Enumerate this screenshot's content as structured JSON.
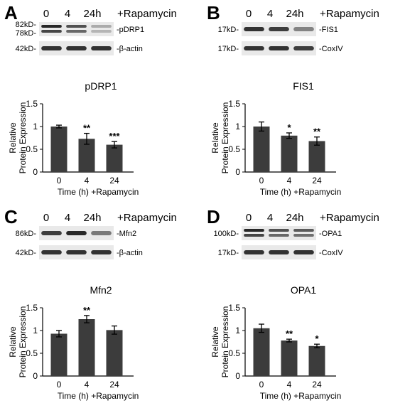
{
  "figure": {
    "lane_headers": [
      "0",
      "4",
      "24h"
    ],
    "treatment": "+Rapamycin",
    "blot_colors": {
      "background": "#e9e9e9",
      "band": "#1e1e1e"
    },
    "bar_color": "#3c3c3c"
  },
  "panels": [
    {
      "letter": "A",
      "blots": [
        {
          "protein": "pDRP1",
          "markers": [
            "82kD-",
            "78kD-"
          ],
          "intensity": [
            0.95,
            0.75,
            0.3
          ],
          "double_band": true
        },
        {
          "protein": "β-actin",
          "markers": [
            "42kD-"
          ],
          "intensity": [
            0.9,
            0.9,
            0.9
          ],
          "double_band": false
        }
      ]
    },
    {
      "letter": "B",
      "blots": [
        {
          "protein": "FIS1",
          "markers": [
            "17kD-"
          ],
          "intensity": [
            0.9,
            0.85,
            0.5
          ],
          "double_band": false
        },
        {
          "protein": "CoxIV",
          "markers": [
            "17kD-"
          ],
          "intensity": [
            0.9,
            0.9,
            0.85
          ],
          "double_band": false
        }
      ]
    },
    {
      "letter": "C",
      "blots": [
        {
          "protein": "Mfn2",
          "markers": [
            "86kD-"
          ],
          "intensity": [
            0.85,
            0.95,
            0.55
          ],
          "double_band": false
        },
        {
          "protein": "β-actin",
          "markers": [
            "42kD-"
          ],
          "intensity": [
            0.9,
            0.9,
            0.9
          ],
          "double_band": false
        }
      ]
    },
    {
      "letter": "D",
      "blots": [
        {
          "protein": "OPA1",
          "markers": [
            "100kD-"
          ],
          "intensity": [
            0.95,
            0.75,
            0.7
          ],
          "double_band": true
        },
        {
          "protein": "CoxIV",
          "markers": [
            "17kD-"
          ],
          "intensity": [
            0.9,
            0.9,
            0.9
          ],
          "double_band": false
        }
      ]
    }
  ],
  "chart_data": [
    {
      "type": "bar",
      "title": "pDRP1",
      "categories": [
        "0",
        "4",
        "24"
      ],
      "values": [
        1.0,
        0.73,
        0.6
      ],
      "errors": [
        0.03,
        0.12,
        0.07
      ],
      "significance": [
        "",
        "**",
        "***"
      ],
      "ylabel": [
        "Relative",
        "Protein Expression"
      ],
      "xlabel": "Time (h) +Rapamycin",
      "ylim": [
        0,
        1.5
      ],
      "yticks": [
        "0",
        "0.5",
        "1",
        "1.5"
      ],
      "yticks_values": [
        0,
        0.5,
        1,
        1.5
      ]
    },
    {
      "type": "bar",
      "title": "FIS1",
      "categories": [
        "0",
        "4",
        "24"
      ],
      "values": [
        1.0,
        0.8,
        0.68
      ],
      "errors": [
        0.1,
        0.06,
        0.09
      ],
      "significance": [
        "",
        "*",
        "**"
      ],
      "ylabel": [
        "Relative",
        "Protein Expression"
      ],
      "xlabel": "Time (h) +Rapamycin",
      "ylim": [
        0,
        1.5
      ],
      "yticks": [
        "0",
        "0.5",
        "1",
        "1.5"
      ],
      "yticks_values": [
        0,
        0.5,
        1,
        1.5
      ]
    },
    {
      "type": "bar",
      "title": "Mfn2",
      "categories": [
        "0",
        "4",
        "24"
      ],
      "values": [
        0.93,
        1.25,
        1.01
      ],
      "errors": [
        0.07,
        0.08,
        0.09
      ],
      "significance": [
        "",
        "**",
        ""
      ],
      "ylabel": [
        "Relative",
        "Protein Expression"
      ],
      "xlabel": "Time (h) +Rapamycin",
      "ylim": [
        0,
        1.5
      ],
      "yticks": [
        "0",
        "0.5",
        "1",
        "1.5"
      ],
      "yticks_values": [
        0,
        0.5,
        1,
        1.5
      ]
    },
    {
      "type": "bar",
      "title": "OPA1",
      "categories": [
        "0",
        "4",
        "24"
      ],
      "values": [
        1.05,
        0.78,
        0.66
      ],
      "errors": [
        0.09,
        0.03,
        0.04
      ],
      "significance": [
        "",
        "**",
        "*"
      ],
      "ylabel": [
        "Relative",
        "Protein Expression"
      ],
      "xlabel": "Time (h) +Rapamycin",
      "ylim": [
        0,
        1.5
      ],
      "yticks": [
        "0",
        "0.5",
        "1",
        "1.5"
      ],
      "yticks_values": [
        0,
        0.5,
        1,
        1.5
      ]
    }
  ]
}
